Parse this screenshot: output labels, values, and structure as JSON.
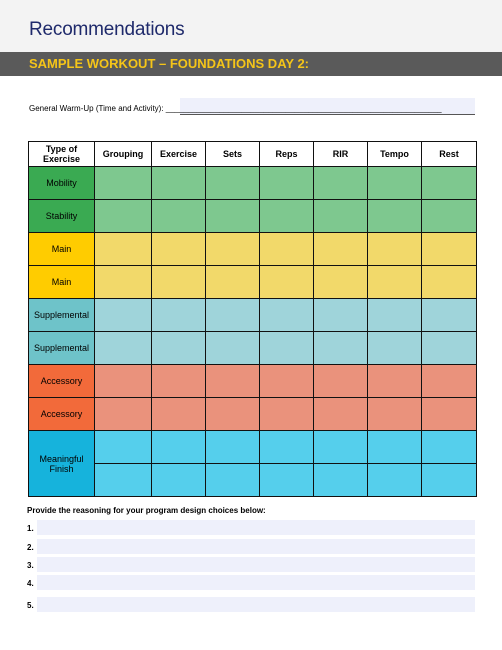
{
  "header": {
    "title": "Recommendations",
    "section": "SAMPLE WORKOUT – FOUNDATIONS DAY 2:"
  },
  "warmup": {
    "label": "General Warm-Up (Time and Activity): ______________________________________________________________",
    "value": ""
  },
  "table": {
    "headers": [
      "Type of Exercise",
      "Grouping",
      "Exercise",
      "Sets",
      "Reps",
      "RIR",
      "Tempo",
      "Rest"
    ],
    "rows": [
      {
        "type": "Mobility",
        "group": "mobility"
      },
      {
        "type": "Stability",
        "group": "stability"
      },
      {
        "type": "Main",
        "group": "main"
      },
      {
        "type": "Main",
        "group": "main"
      },
      {
        "type": "Supplemental",
        "group": "supplemental"
      },
      {
        "type": "Supplemental",
        "group": "supplemental"
      },
      {
        "type": "Accessory",
        "group": "accessory"
      },
      {
        "type": "Accessory",
        "group": "accessory"
      },
      {
        "type": "Meaningful Finish",
        "group": "finish"
      }
    ]
  },
  "reasoning": {
    "label": "Provide the reasoning for your program design choices below:",
    "items": [
      "1.",
      "2.",
      "3.",
      "4.",
      "5."
    ]
  },
  "colors": {
    "title_text": "#1f2a6b",
    "section_bar": "#5a5a5a",
    "section_text": "#f5c518",
    "mobility": "#3aaa52",
    "main": "#ffcc00",
    "supplemental": "#6ec3c9",
    "accessory": "#f26a3a",
    "finish": "#16b3dc"
  }
}
